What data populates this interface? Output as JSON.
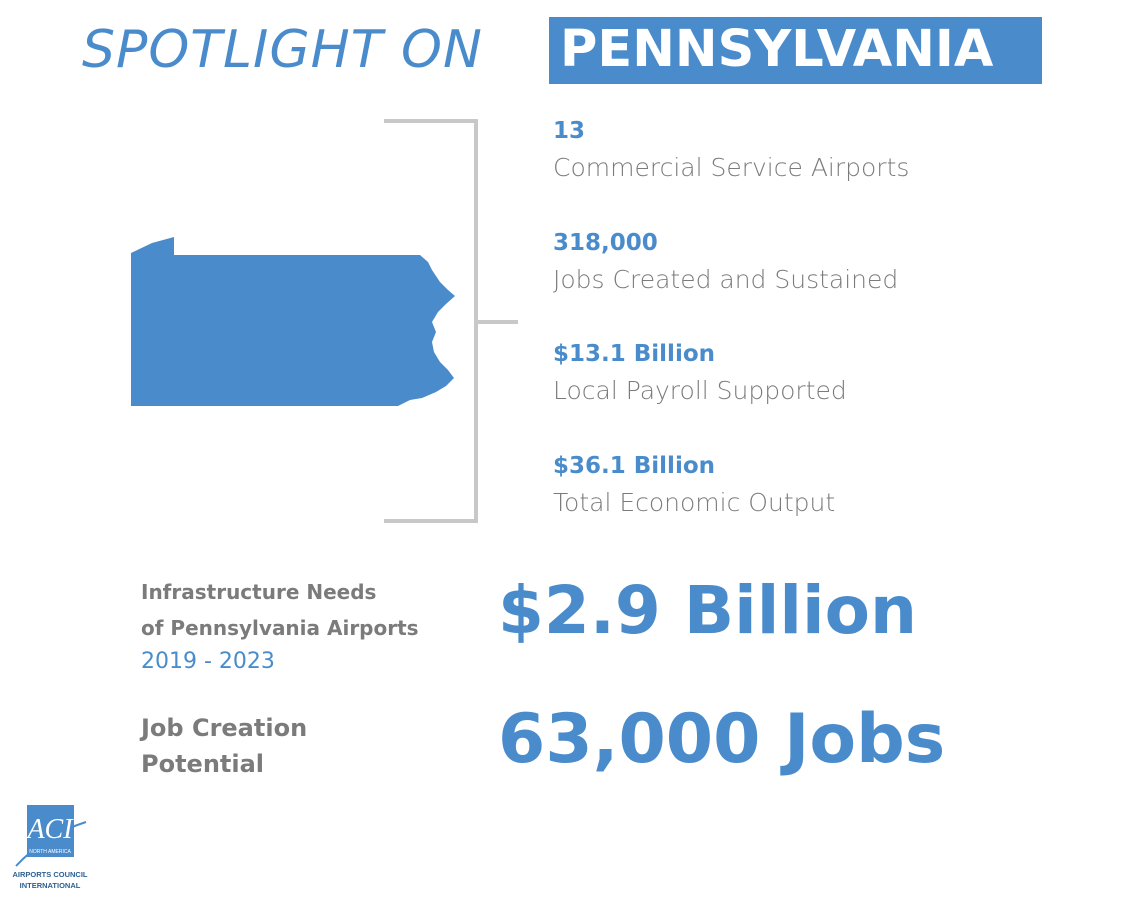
{
  "header": {
    "lead": "SPOTLIGHT ON",
    "state": "PENNSYLVANIA"
  },
  "stats": [
    {
      "value": "13",
      "label": "Commercial Service Airports"
    },
    {
      "value": "318,000",
      "label": "Jobs Created and Sustained"
    },
    {
      "value": "$13.1 Billion",
      "label": "Local Payroll Supported"
    },
    {
      "value": "$36.1 Billion",
      "label": "Total Economic Output"
    }
  ],
  "infrastructure": {
    "label_lines": [
      "Infrastructure Needs",
      "of Pennsylvania Airports"
    ],
    "period": "2019 - 2023",
    "amount": "$2.9 Billion"
  },
  "jobs": {
    "label_lines": [
      "Job Creation",
      "Potential"
    ],
    "amount": "63,000 Jobs"
  },
  "logo": {
    "mark": "ACI",
    "region": "NORTH AMERICA",
    "name_lines": [
      "AIRPORTS COUNCIL",
      "INTERNATIONAL"
    ]
  }
}
